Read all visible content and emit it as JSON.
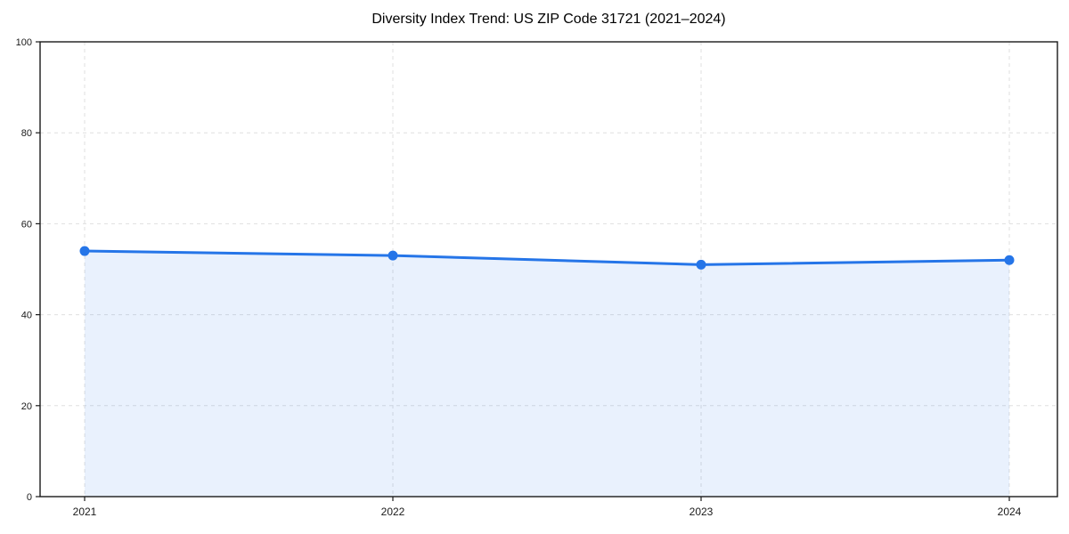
{
  "chart_data": {
    "type": "line",
    "title": "Diversity Index Trend: US ZIP Code 31721 (2021–2024)",
    "categories": [
      "2021",
      "2022",
      "2023",
      "2024"
    ],
    "series": [
      {
        "name": "Diversity Index",
        "values": [
          54,
          53,
          51,
          52
        ]
      }
    ],
    "xlabel": "",
    "ylabel": "",
    "ylim": [
      0,
      100
    ],
    "yticks": [
      0,
      20,
      40,
      60,
      80,
      100
    ],
    "grid": true,
    "grid_style": "dashed",
    "legend": false,
    "area_fill": true,
    "marker": "circle",
    "colors": {
      "line": "#2575e8",
      "marker": "#2575e8",
      "area": "rgba(37,117,232,0.10)",
      "grid": "#dfdfdf",
      "axis": "#1a1a1a",
      "tick_label": "#1a1a1a",
      "title": "#000000",
      "background": "#ffffff"
    }
  }
}
